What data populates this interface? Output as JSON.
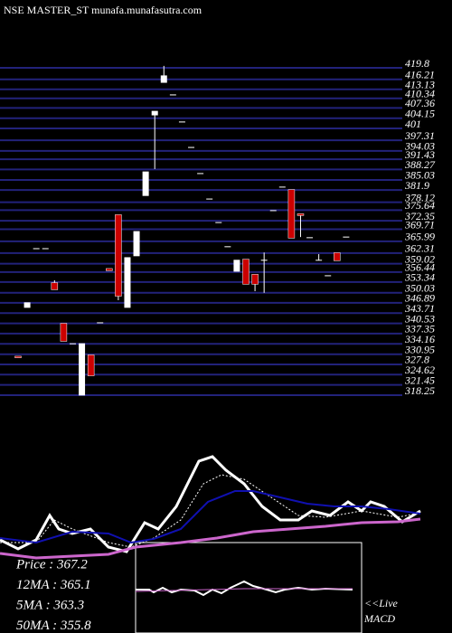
{
  "chart_data": [
    {
      "type": "candlestick",
      "title": "NSE MASTER_ST munafa.munafasutra.com",
      "up_color": "#ffffff",
      "down_color": "#cc0000",
      "grid_color": "#22227a",
      "ylim": [
        318.25,
        419.8
      ],
      "yticks": [
        419.8,
        416.21,
        413.13,
        410.34,
        407.36,
        404.15,
        401,
        397.31,
        394.03,
        391.43,
        388.27,
        385.03,
        381.9,
        378.12,
        375.64,
        372.35,
        369.71,
        365.99,
        362.31,
        359.02,
        356.44,
        353.34,
        350.03,
        346.89,
        343.71,
        340.53,
        337.35,
        334.16,
        330.95,
        327.8,
        324.62,
        321.45,
        318.25
      ],
      "open": [
        330.2,
        345.5,
        363.7,
        363.7,
        353.0,
        340.4,
        334.2,
        318.3,
        330.6,
        340.7,
        357.4,
        374.1,
        345.5,
        361.5,
        380.2,
        405.2,
        415.3,
        411.4,
        403.0,
        395.1,
        387.0,
        379.1,
        371.8,
        364.3,
        356.7,
        360.3,
        355.6,
        360.1,
        375.5,
        382.8,
        381.9,
        374.4,
        367.1,
        360.1,
        355.3,
        362.3,
        367.3
      ],
      "high": [
        330.2,
        346.9,
        363.7,
        363.7,
        353.9,
        340.4,
        334.2,
        334.2,
        330.6,
        340.7,
        357.4,
        374.1,
        360.9,
        369.0,
        387.5,
        406.3,
        420.4,
        411.4,
        403.0,
        395.1,
        387.0,
        379.1,
        371.8,
        364.3,
        360.1,
        360.3,
        355.6,
        362.5,
        375.5,
        382.8,
        381.9,
        374.4,
        367.1,
        362.0,
        355.3,
        362.3,
        367.3
      ],
      "low": [
        330.0,
        345.5,
        363.7,
        363.7,
        351.1,
        335.1,
        334.2,
        318.3,
        324.4,
        340.7,
        357.0,
        347.7,
        345.5,
        361.5,
        380.2,
        388.4,
        415.3,
        411.4,
        403.0,
        395.1,
        387.0,
        379.1,
        371.8,
        364.3,
        356.7,
        352.8,
        350.5,
        350.0,
        375.5,
        382.8,
        367.1,
        367.3,
        367.1,
        360.1,
        355.3,
        360.1,
        367.3
      ],
      "close": [
        330.0,
        346.9,
        363.7,
        363.7,
        351.1,
        335.1,
        334.2,
        334.2,
        324.4,
        340.7,
        357.0,
        349.1,
        360.9,
        369.0,
        387.5,
        406.3,
        417.3,
        411.4,
        403.0,
        395.1,
        387.0,
        379.1,
        371.8,
        364.3,
        360.1,
        352.8,
        352.8,
        360.1,
        375.5,
        382.8,
        367.1,
        374.1,
        367.1,
        360.1,
        355.3,
        360.1,
        367.3
      ],
      "annotations": [
        "Price  : 367.2",
        "12MA : 365.1",
        "5MA : 363.3",
        "50MA : 355.8"
      ]
    },
    {
      "type": "line",
      "xlim": [
        0,
        500
      ],
      "ylim": [
        0,
        140
      ],
      "series": [
        {
          "color": "#ffffff",
          "width": 3,
          "dash": false,
          "x": [
            0,
            20,
            40,
            55,
            65,
            80,
            100,
            120,
            140,
            160,
            175,
            195,
            220,
            235,
            250,
            270,
            290,
            310,
            330,
            345,
            365,
            385,
            400,
            410,
            425,
            445,
            465
          ],
          "values": [
            23,
            13,
            23,
            50,
            35,
            30,
            35,
            15,
            10,
            42,
            35,
            60,
            110,
            115,
            100,
            85,
            60,
            45,
            45,
            55,
            50,
            65,
            55,
            65,
            60,
            43,
            55
          ]
        },
        {
          "color": "#ffffff",
          "width": 1,
          "dash": true,
          "x": [
            0,
            40,
            60,
            80,
            120,
            145,
            170,
            200,
            225,
            245,
            270,
            300,
            330,
            360,
            400,
            440,
            465
          ],
          "values": [
            20,
            20,
            45,
            35,
            20,
            15,
            25,
            45,
            85,
            95,
            90,
            70,
            50,
            48,
            55,
            48,
            53
          ]
        },
        {
          "color": "#1010b0",
          "width": 2,
          "dash": false,
          "x": [
            0,
            40,
            80,
            120,
            145,
            170,
            200,
            230,
            260,
            280,
            310,
            340,
            370,
            400,
            430,
            465
          ],
          "values": [
            25,
            20,
            32,
            30,
            20,
            24,
            35,
            65,
            77,
            77,
            70,
            63,
            60,
            60,
            57,
            52
          ]
        },
        {
          "color": "#cc66cc",
          "width": 3,
          "dash": false,
          "x": [
            0,
            40,
            80,
            120,
            150,
            200,
            240,
            280,
            320,
            360,
            400,
            440,
            465
          ],
          "values": [
            8,
            3,
            5,
            7,
            15,
            20,
            25,
            32,
            35,
            38,
            42,
            43,
            46
          ]
        }
      ]
    },
    {
      "type": "line",
      "xlim": [
        0,
        500
      ],
      "ylim": [
        0,
        100
      ],
      "annotations": [
        "<<Live",
        "MACD"
      ],
      "series": [
        {
          "color": "#ffffff",
          "width": 2,
          "dash": false,
          "x": [
            150,
            165,
            170,
            180,
            190,
            200,
            215,
            225,
            235,
            245,
            255,
            270,
            280,
            295,
            305,
            315,
            330,
            345,
            360,
            390
          ],
          "values": [
            48,
            48,
            45,
            50,
            45,
            48,
            47,
            42,
            48,
            44,
            50,
            57,
            52,
            48,
            45,
            48,
            50,
            48,
            49,
            48
          ]
        },
        {
          "color": "#cc66cc",
          "width": 1,
          "dash": false,
          "x": [
            150,
            270,
            390
          ],
          "values": [
            46,
            49,
            49
          ]
        }
      ]
    }
  ]
}
